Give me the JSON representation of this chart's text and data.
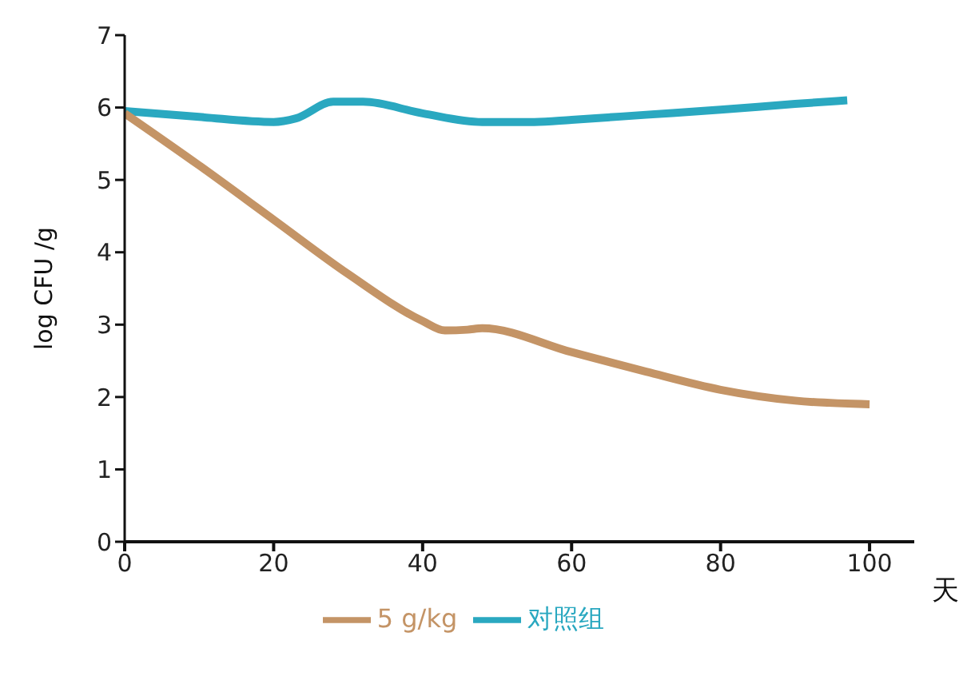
{
  "chart_data": {
    "type": "line",
    "xlabel": "天",
    "ylabel": "log CFU /g",
    "xlim": [
      0,
      106
    ],
    "xticks": [
      0,
      20,
      40,
      60,
      80,
      100
    ],
    "ylim": [
      0,
      7
    ],
    "yticks": [
      0,
      1,
      2,
      3,
      4,
      5,
      6,
      7
    ],
    "grid": false,
    "legend": "bottom",
    "marker": "none",
    "line_style": "solid",
    "series": [
      {
        "name": "对照组",
        "color": "#2aa8c0",
        "x": [
          0,
          10,
          20,
          23,
          28,
          32,
          40,
          48,
          55,
          60,
          70,
          80,
          90,
          97
        ],
        "values": [
          5.95,
          5.87,
          5.8,
          5.85,
          6.08,
          6.08,
          5.92,
          5.8,
          5.8,
          5.83,
          5.9,
          5.97,
          6.05,
          6.1
        ]
      },
      {
        "name": "5 g/kg",
        "color": "#c49466",
        "x": [
          0,
          10,
          20,
          30,
          40,
          43,
          46,
          48,
          60,
          70,
          80,
          90,
          100
        ],
        "values": [
          5.92,
          5.2,
          4.45,
          3.7,
          3.05,
          2.92,
          2.93,
          2.95,
          2.62,
          2.35,
          2.1,
          1.95,
          1.9
        ]
      }
    ]
  }
}
